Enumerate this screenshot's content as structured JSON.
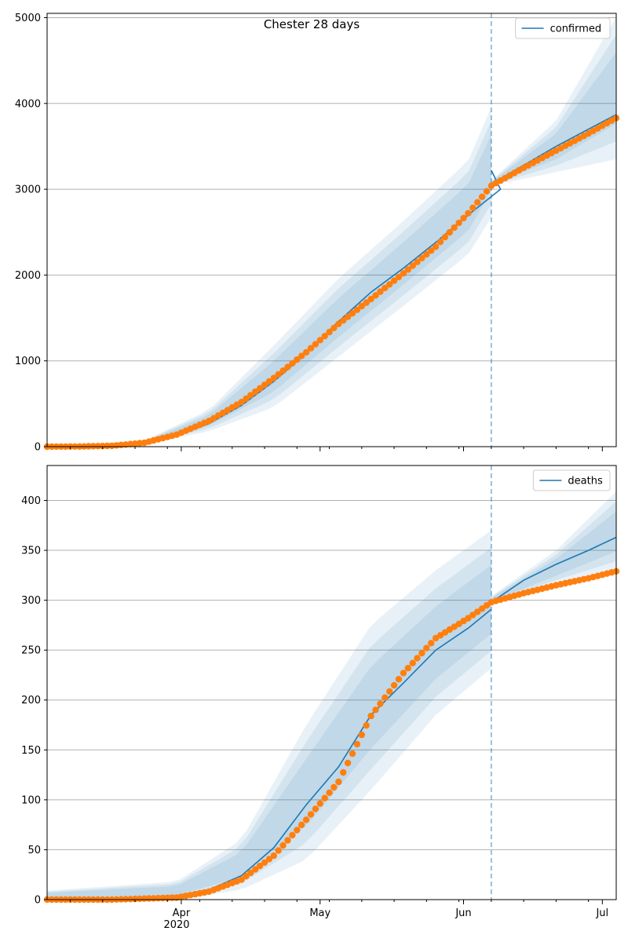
{
  "title": "Chester 28 days",
  "x_axis": {
    "ticks": [
      {
        "date": "2020-04-01",
        "label": "Apr"
      },
      {
        "date": "2020-05-01",
        "label": "May"
      },
      {
        "date": "2020-06-01",
        "label": "Jun"
      },
      {
        "date": "2020-07-01",
        "label": "Jul"
      }
    ],
    "year_label": "2020"
  },
  "colors": {
    "model": "#1f77b4",
    "observed": "#ff7f0e",
    "band": "#1f77b4",
    "grid": "#b0b0b0",
    "divider": "#1f77b4"
  },
  "chart_data": [
    {
      "type": "line",
      "title": "Chester 28 days",
      "legend": "top-right",
      "grid": "horizontal",
      "x_range": [
        "2020-03-03",
        "2020-07-04"
      ],
      "ylim": [
        0,
        5050
      ],
      "yticks": [
        0,
        1000,
        2000,
        3000,
        4000,
        5000
      ],
      "forecast_start": "2020-06-07",
      "series": [
        {
          "name": "confirmed",
          "kind": "line",
          "points": [
            [
              "2020-03-03",
              0
            ],
            [
              "2020-03-10",
              2
            ],
            [
              "2020-03-17",
              8
            ],
            [
              "2020-03-24",
              40
            ],
            [
              "2020-03-31",
              125
            ],
            [
              "2020-04-07",
              270
            ],
            [
              "2020-04-14",
              480
            ],
            [
              "2020-04-21",
              760
            ],
            [
              "2020-04-28",
              1090
            ],
            [
              "2020-05-05",
              1460
            ],
            [
              "2020-05-12",
              1800
            ],
            [
              "2020-05-19",
              2080
            ],
            [
              "2020-05-26",
              2380
            ],
            [
              "2020-06-02",
              2700
            ],
            [
              "2020-06-09",
              3000
            ],
            [
              "2020-06-07",
              3220
            ]
          ],
          "points_after": [
            [
              "2020-06-07",
              3060
            ],
            [
              "2020-06-14",
              3280
            ],
            [
              "2020-06-21",
              3500
            ],
            [
              "2020-06-28",
              3700
            ],
            [
              "2020-07-04",
              3870
            ]
          ]
        },
        {
          "name": "",
          "kind": "scatter",
          "points": [
            [
              "2020-03-03",
              0
            ],
            [
              "2020-03-10",
              2
            ],
            [
              "2020-03-17",
              10
            ],
            [
              "2020-03-24",
              45
            ],
            [
              "2020-03-31",
              140
            ],
            [
              "2020-04-07",
              300
            ],
            [
              "2020-04-14",
              520
            ],
            [
              "2020-04-21",
              800
            ],
            [
              "2020-04-28",
              1100
            ],
            [
              "2020-05-05",
              1430
            ],
            [
              "2020-05-12",
              1720
            ],
            [
              "2020-05-19",
              2020
            ],
            [
              "2020-05-26",
              2330
            ],
            [
              "2020-06-02",
              2720
            ],
            [
              "2020-06-07",
              3040
            ],
            [
              "2020-06-14",
              3250
            ],
            [
              "2020-06-21",
              3450
            ],
            [
              "2020-06-28",
              3650
            ],
            [
              "2020-07-04",
              3830
            ]
          ]
        }
      ],
      "bands": [
        {
          "upper": [
            [
              "2020-03-03",
              0
            ],
            [
              "2020-03-24",
              70
            ],
            [
              "2020-04-07",
              430
            ],
            [
              "2020-04-21",
              1180
            ],
            [
              "2020-05-05",
              1960
            ],
            [
              "2020-05-19",
              2630
            ],
            [
              "2020-06-02",
              3330
            ],
            [
              "2020-06-07",
              3960
            ]
          ],
          "lower": [
            [
              "2020-03-03",
              0
            ],
            [
              "2020-03-24",
              25
            ],
            [
              "2020-04-07",
              180
            ],
            [
              "2020-04-21",
              460
            ],
            [
              "2020-05-05",
              1050
            ],
            [
              "2020-05-19",
              1640
            ],
            [
              "2020-06-02",
              2240
            ],
            [
              "2020-06-07",
              2670
            ]
          ]
        },
        {
          "upper": [
            [
              "2020-06-07",
              3100
            ],
            [
              "2020-06-21",
              3800
            ],
            [
              "2020-07-04",
              5010
            ]
          ],
          "lower": [
            [
              "2020-06-07",
              3040
            ],
            [
              "2020-06-21",
              3200
            ],
            [
              "2020-07-04",
              3350
            ]
          ]
        }
      ]
    },
    {
      "type": "line",
      "title": "",
      "legend": "top-right",
      "grid": "horizontal",
      "x_range": [
        "2020-03-03",
        "2020-07-04"
      ],
      "ylim": [
        0,
        435
      ],
      "yticks": [
        0,
        50,
        100,
        150,
        200,
        250,
        300,
        350,
        400
      ],
      "forecast_start": "2020-06-07",
      "series": [
        {
          "name": "deaths",
          "kind": "line",
          "points": [
            [
              "2020-03-03",
              0
            ],
            [
              "2020-03-17",
              1
            ],
            [
              "2020-03-31",
              4
            ],
            [
              "2020-04-07",
              10
            ],
            [
              "2020-04-14",
              24
            ],
            [
              "2020-04-21",
              52
            ],
            [
              "2020-04-28",
              95
            ],
            [
              "2020-05-05",
              133
            ],
            [
              "2020-05-12",
              185
            ],
            [
              "2020-05-19",
              217
            ],
            [
              "2020-05-26",
              250
            ],
            [
              "2020-06-02",
              272
            ],
            [
              "2020-06-07",
              291
            ]
          ],
          "points_after": [
            [
              "2020-06-07",
              298
            ],
            [
              "2020-06-14",
              320
            ],
            [
              "2020-06-21",
              336
            ],
            [
              "2020-06-28",
              350
            ],
            [
              "2020-07-04",
              363
            ]
          ]
        },
        {
          "name": "",
          "kind": "scatter",
          "points": [
            [
              "2020-03-03",
              0
            ],
            [
              "2020-03-17",
              0
            ],
            [
              "2020-03-31",
              2
            ],
            [
              "2020-04-07",
              8
            ],
            [
              "2020-04-14",
              20
            ],
            [
              "2020-04-21",
              44
            ],
            [
              "2020-04-28",
              80
            ],
            [
              "2020-05-05",
              118
            ],
            [
              "2020-05-12",
              184
            ],
            [
              "2020-05-19",
              227
            ],
            [
              "2020-05-26",
              262
            ],
            [
              "2020-06-02",
              282
            ],
            [
              "2020-06-07",
              298
            ],
            [
              "2020-06-14",
              307
            ],
            [
              "2020-06-21",
              315
            ],
            [
              "2020-06-28",
              322
            ],
            [
              "2020-07-04",
              329
            ]
          ]
        }
      ],
      "bands": [
        {
          "upper": [
            [
              "2020-03-03",
              9
            ],
            [
              "2020-03-31",
              18
            ],
            [
              "2020-04-14",
              60
            ],
            [
              "2020-04-28",
              175
            ],
            [
              "2020-05-12",
              275
            ],
            [
              "2020-05-26",
              330
            ],
            [
              "2020-06-07",
              370
            ]
          ],
          "lower": [
            [
              "2020-03-03",
              0
            ],
            [
              "2020-03-31",
              0
            ],
            [
              "2020-04-14",
              10
            ],
            [
              "2020-04-28",
              40
            ],
            [
              "2020-05-12",
              110
            ],
            [
              "2020-05-26",
              185
            ],
            [
              "2020-06-07",
              232
            ]
          ]
        },
        {
          "upper": [
            [
              "2020-06-07",
              304
            ],
            [
              "2020-06-21",
              350
            ],
            [
              "2020-07-04",
              409
            ]
          ],
          "lower": [
            [
              "2020-06-07",
              297
            ],
            [
              "2020-06-21",
              316
            ],
            [
              "2020-07-04",
              329
            ]
          ]
        }
      ]
    }
  ]
}
